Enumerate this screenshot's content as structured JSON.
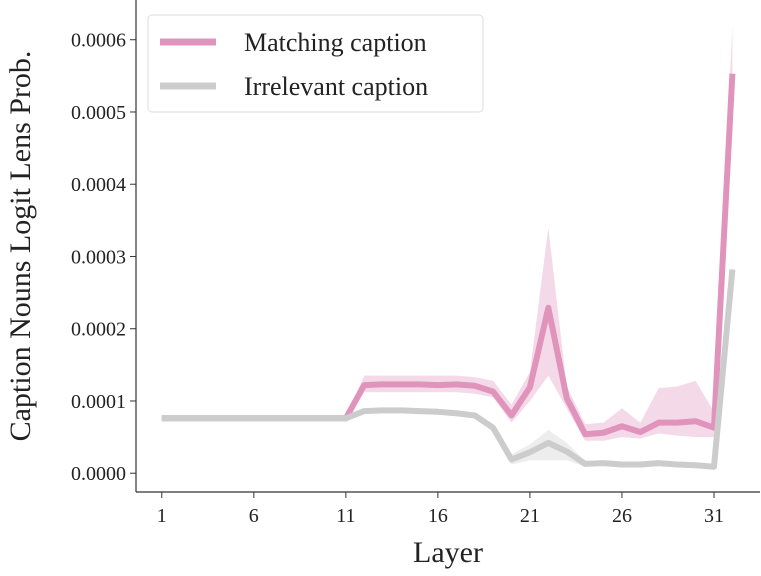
{
  "chart_data": {
    "type": "line",
    "xlabel": "Layer",
    "ylabel": "Caption Nouns Logit Lens Prob.",
    "x": [
      1,
      2,
      3,
      4,
      5,
      6,
      7,
      8,
      9,
      10,
      11,
      12,
      13,
      14,
      15,
      16,
      17,
      18,
      19,
      20,
      21,
      22,
      23,
      24,
      25,
      26,
      27,
      28,
      29,
      30,
      31,
      32
    ],
    "series": [
      {
        "name": "Matching caption",
        "color": "#e094bc",
        "values": [
          7.6e-05,
          7.6e-05,
          7.6e-05,
          7.6e-05,
          7.6e-05,
          7.6e-05,
          7.6e-05,
          7.6e-05,
          7.6e-05,
          7.6e-05,
          7.6e-05,
          0.000122,
          0.000123,
          0.000123,
          0.000123,
          0.000122,
          0.000123,
          0.000121,
          0.000113,
          8e-05,
          0.000119,
          0.000229,
          0.000104,
          5.4e-05,
          5.6e-05,
          6.5e-05,
          5.7e-05,
          7e-05,
          7e-05,
          7.2e-05,
          6.3e-05,
          0.000553
        ],
        "lower": [
          7.4e-05,
          7.4e-05,
          7.4e-05,
          7.4e-05,
          7.4e-05,
          7.4e-05,
          7.4e-05,
          7.4e-05,
          7.4e-05,
          7.4e-05,
          7.4e-05,
          0.000112,
          0.000112,
          0.000112,
          0.000112,
          0.000112,
          0.000112,
          0.00011,
          0.000105,
          7e-05,
          0.0001,
          0.000135,
          9e-05,
          4.5e-05,
          4.5e-05,
          5e-05,
          4.8e-05,
          5.5e-05,
          5.2e-05,
          5e-05,
          5e-05,
          0.00049
        ],
        "upper": [
          7.8e-05,
          7.8e-05,
          7.8e-05,
          7.8e-05,
          7.8e-05,
          7.8e-05,
          7.8e-05,
          7.8e-05,
          7.8e-05,
          7.8e-05,
          7.8e-05,
          0.000135,
          0.000135,
          0.000135,
          0.000135,
          0.000135,
          0.000135,
          0.000133,
          0.000128,
          9.5e-05,
          0.00014,
          0.00034,
          0.00012,
          6.8e-05,
          7e-05,
          9e-05,
          7e-05,
          0.000118,
          0.00012,
          0.000128,
          8.5e-05,
          0.00062
        ]
      },
      {
        "name": "Irrelevant caption",
        "color": "#cccccc",
        "values": [
          7.6e-05,
          7.6e-05,
          7.6e-05,
          7.6e-05,
          7.6e-05,
          7.6e-05,
          7.6e-05,
          7.6e-05,
          7.6e-05,
          7.6e-05,
          7.6e-05,
          8.6e-05,
          8.7e-05,
          8.7e-05,
          8.6e-05,
          8.5e-05,
          8.3e-05,
          8e-05,
          6.3e-05,
          1.9e-05,
          2.9e-05,
          4.2e-05,
          3e-05,
          1.3e-05,
          1.4e-05,
          1.2e-05,
          1.2e-05,
          1.4e-05,
          1.2e-05,
          1.1e-05,
          9e-06,
          0.000282
        ],
        "lower": [
          7.4e-05,
          7.4e-05,
          7.4e-05,
          7.4e-05,
          7.4e-05,
          7.4e-05,
          7.4e-05,
          7.4e-05,
          7.4e-05,
          7.4e-05,
          7.4e-05,
          8.2e-05,
          8.3e-05,
          8.3e-05,
          8.2e-05,
          8.1e-05,
          7.9e-05,
          7.6e-05,
          5.8e-05,
          1.2e-05,
          1.8e-05,
          1.8e-05,
          1.8e-05,
          9e-06,
          1e-05,
          8e-06,
          8e-06,
          1e-05,
          8e-06,
          7e-06,
          6e-06,
          0.000275
        ],
        "upper": [
          7.8e-05,
          7.8e-05,
          7.8e-05,
          7.8e-05,
          7.8e-05,
          7.8e-05,
          7.8e-05,
          7.8e-05,
          7.8e-05,
          7.8e-05,
          7.8e-05,
          9e-05,
          9.1e-05,
          9.1e-05,
          9e-05,
          8.9e-05,
          8.7e-05,
          8.4e-05,
          6.8e-05,
          2.6e-05,
          4e-05,
          6e-05,
          4.2e-05,
          1.7e-05,
          1.8e-05,
          1.6e-05,
          1.6e-05,
          1.8e-05,
          1.6e-05,
          1.5e-05,
          1.2e-05,
          0.00029
        ]
      }
    ],
    "xlim": [
      -0.4,
      33.5
    ],
    "xticks": [
      1,
      6,
      11,
      16,
      21,
      26,
      31
    ],
    "ylim": [
      -2.6e-05,
      0.000655
    ],
    "yticks": [
      {
        "value": 0,
        "label": "0.0000"
      },
      {
        "value": 0.0001,
        "label": "0.0001"
      },
      {
        "value": 0.0002,
        "label": "0.0002"
      },
      {
        "value": 0.0003,
        "label": "0.0003"
      },
      {
        "value": 0.0004,
        "label": "0.0004"
      },
      {
        "value": 0.0005,
        "label": "0.0005"
      },
      {
        "value": 0.0006,
        "label": "0.0006"
      }
    ],
    "legend": "upper left",
    "grid": false
  }
}
